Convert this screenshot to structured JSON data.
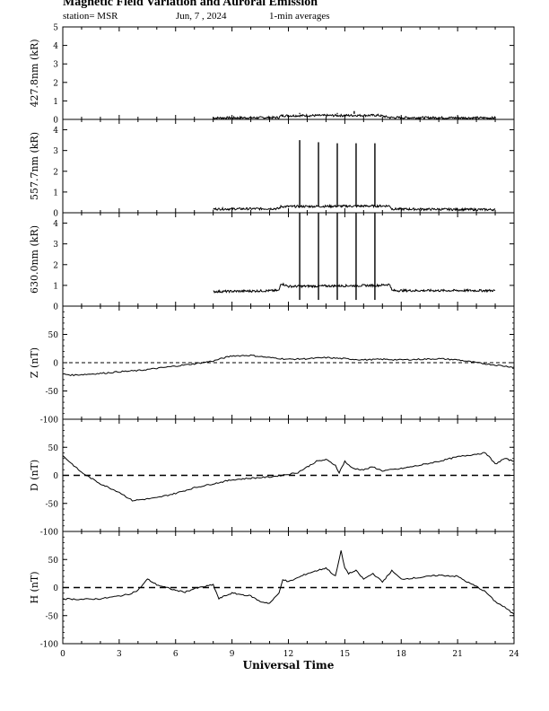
{
  "header": {
    "title": "Magnetic Field Variation and Auroral Emission",
    "station": "station= MSR",
    "date": "Jun, 7  , 2024",
    "averages": "1-min averages"
  },
  "chart_data": [
    {
      "type": "line",
      "id": "em4278",
      "ylabel": "427.8nm (kR)",
      "ylim": [
        0,
        5
      ],
      "yticks": [
        0,
        1,
        2,
        3,
        4,
        5
      ],
      "xlim": [
        0,
        24
      ],
      "series": [
        {
          "x": [
            8,
            11.5,
            11.6,
            16.8,
            17.4,
            23
          ],
          "y": [
            0.08,
            0.1,
            0.2,
            0.22,
            0.1,
            0.08
          ]
        }
      ],
      "spikes": [
        {
          "x": 12.6,
          "y": 0.35
        },
        {
          "x": 14.6,
          "y": 0.35
        },
        {
          "x": 15.5,
          "y": 0.45
        }
      ]
    },
    {
      "type": "line",
      "id": "em5577",
      "ylabel": "557.7nm (kR)",
      "ylim": [
        0,
        4.5
      ],
      "yticks": [
        0,
        1,
        2,
        3,
        4
      ],
      "xlim": [
        0,
        24
      ],
      "series": [
        {
          "x": [
            8,
            11.5,
            11.6,
            17.4,
            17.5,
            23
          ],
          "y": [
            0.18,
            0.2,
            0.3,
            0.33,
            0.18,
            0.15
          ]
        }
      ],
      "spikes": [
        {
          "x": 12.6,
          "y": 3.5
        },
        {
          "x": 13.6,
          "y": 3.4
        },
        {
          "x": 14.6,
          "y": 3.35
        },
        {
          "x": 15.6,
          "y": 3.35
        },
        {
          "x": 16.6,
          "y": 3.35
        }
      ]
    },
    {
      "type": "line",
      "id": "em6300",
      "ylabel": "630.0nm (kR)",
      "ylim": [
        0,
        4.5
      ],
      "yticks": [
        0,
        1,
        2,
        3,
        4
      ],
      "xlim": [
        0,
        24
      ],
      "series": [
        {
          "x": [
            8,
            11.5,
            11.6,
            12,
            16.8,
            17.4,
            17.5,
            23
          ],
          "y": [
            0.7,
            0.75,
            1.1,
            0.95,
            1.0,
            1.05,
            0.75,
            0.75
          ]
        }
      ],
      "spikes": [
        {
          "x": 12.6,
          "y": 4.5
        },
        {
          "x": 13.6,
          "y": 4.5
        },
        {
          "x": 14.6,
          "y": 4.5
        },
        {
          "x": 15.6,
          "y": 4.5
        },
        {
          "x": 16.6,
          "y": 4.5
        }
      ]
    },
    {
      "type": "line",
      "id": "magZ",
      "ylabel": "Z (nT)",
      "ylim": [
        -100,
        100
      ],
      "yticks": [
        -100,
        -50,
        0,
        50
      ],
      "xlim": [
        0,
        24
      ],
      "reference": 0,
      "series": [
        {
          "x": [
            0,
            0.5,
            1,
            2,
            3,
            4,
            5,
            6,
            7,
            8,
            8.5,
            9,
            10,
            11,
            12,
            13,
            14,
            15,
            16,
            17,
            18,
            19,
            20,
            21,
            22,
            23,
            24
          ],
          "y": [
            -20,
            -22,
            -21,
            -19,
            -16,
            -14,
            -10,
            -6,
            -2,
            3,
            8,
            12,
            13,
            9,
            6,
            7,
            9,
            7,
            5,
            6,
            5,
            6,
            7,
            5,
            0,
            -4,
            -8
          ]
        }
      ]
    },
    {
      "type": "line",
      "id": "magD",
      "ylabel": "D (nT)",
      "ylim": [
        -100,
        100
      ],
      "yticks": [
        -100,
        -50,
        0,
        50
      ],
      "xlim": [
        0,
        24
      ],
      "reference": 0,
      "series": [
        {
          "x": [
            0,
            0.5,
            1,
            1.5,
            2,
            3,
            3.7,
            4.5,
            5,
            6,
            7,
            8,
            9,
            10,
            11,
            12,
            12.5,
            13,
            13.5,
            14,
            14.5,
            14.7,
            15,
            15.3,
            15.5,
            16,
            16.5,
            17,
            18,
            19,
            20,
            21,
            22,
            22.5,
            23,
            23.5,
            24
          ],
          "y": [
            35,
            20,
            5,
            -5,
            -15,
            -30,
            -45,
            -42,
            -40,
            -32,
            -22,
            -15,
            -8,
            -5,
            -3,
            2,
            5,
            15,
            25,
            28,
            18,
            5,
            25,
            15,
            12,
            10,
            15,
            8,
            12,
            18,
            25,
            33,
            38,
            40,
            20,
            30,
            25
          ]
        }
      ]
    },
    {
      "type": "line",
      "id": "magH",
      "ylabel": "H (nT)",
      "ylim": [
        -100,
        100
      ],
      "yticks": [
        -100,
        -50,
        0,
        50
      ],
      "xlim": [
        0,
        24
      ],
      "reference": 0,
      "xticks": [
        0,
        3,
        6,
        9,
        12,
        15,
        18,
        21,
        24
      ],
      "xlabel": "Universal Time",
      "series": [
        {
          "x": [
            0,
            1,
            2,
            3,
            3.5,
            4,
            4.5,
            5,
            5.5,
            6,
            6.5,
            7,
            8,
            8.3,
            8.6,
            9,
            10,
            10.5,
            11,
            11.5,
            11.7,
            12,
            13,
            13.5,
            14,
            14.5,
            14.8,
            15,
            15.2,
            15.6,
            16,
            16.5,
            17,
            17.5,
            18,
            19,
            20,
            21,
            21.5,
            22,
            22.5,
            23,
            23.5,
            24
          ],
          "y": [
            -20,
            -21,
            -20,
            -15,
            -12,
            -5,
            15,
            5,
            0,
            -5,
            -8,
            -2,
            5,
            -20,
            -15,
            -10,
            -15,
            -25,
            -28,
            -10,
            15,
            10,
            25,
            30,
            35,
            20,
            65,
            35,
            25,
            30,
            15,
            25,
            10,
            30,
            15,
            18,
            22,
            20,
            10,
            2,
            -8,
            -25,
            -35,
            -48
          ]
        }
      ]
    }
  ]
}
